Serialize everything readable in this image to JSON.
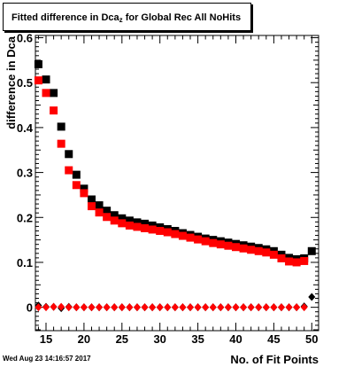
{
  "title": {
    "prefix": "Fitted difference in Dca",
    "subscript": "z",
    "suffix": " for Global Rec All NoHits"
  },
  "timestamp": "Wed Aug 23 14:16:57 2017",
  "chart_data": {
    "type": "scatter",
    "title": "Fitted difference in Dcaz for Global Rec All NoHits",
    "xlabel": "No. of Fit Points",
    "ylabel": "difference in Dca",
    "xlim": [
      13.6,
      50.9
    ],
    "ylim": [
      -0.052,
      0.605
    ],
    "x_ticks": [
      15,
      20,
      25,
      30,
      35,
      40,
      45,
      50
    ],
    "y_ticks": [
      0,
      0.1,
      0.2,
      0.3,
      0.4,
      0.5,
      0.6
    ],
    "grid": false,
    "legend": "none",
    "series": [
      {
        "color": "#000000",
        "marker": "square",
        "x": [
          14,
          15,
          16,
          17,
          18,
          19,
          20,
          21,
          22,
          23,
          24,
          25,
          26,
          27,
          28,
          29,
          30,
          31,
          32,
          33,
          34,
          35,
          36,
          37,
          38,
          39,
          40,
          41,
          42,
          43,
          44,
          45,
          46,
          47,
          48,
          49,
          50
        ],
        "y": [
          0.541,
          0.507,
          0.477,
          0.402,
          0.341,
          0.295,
          0.264,
          0.24,
          0.227,
          0.215,
          0.205,
          0.198,
          0.193,
          0.189,
          0.186,
          0.182,
          0.178,
          0.174,
          0.17,
          0.165,
          0.161,
          0.157,
          0.153,
          0.15,
          0.147,
          0.144,
          0.141,
          0.138,
          0.135,
          0.132,
          0.129,
          0.125,
          0.117,
          0.11,
          0.107,
          0.109,
          0.125
        ]
      },
      {
        "color": "#ff0000",
        "marker": "square",
        "x": [
          14,
          15,
          16,
          17,
          18,
          19,
          20,
          21,
          22,
          23,
          24,
          25,
          26,
          27,
          28,
          29,
          30,
          31,
          32,
          33,
          34,
          35,
          36,
          37,
          38,
          39,
          40,
          41,
          42,
          43,
          44,
          45,
          46,
          47,
          48,
          49
        ],
        "y": [
          0.505,
          0.477,
          0.438,
          0.364,
          0.305,
          0.272,
          0.254,
          0.225,
          0.211,
          0.201,
          0.193,
          0.187,
          0.182,
          0.179,
          0.176,
          0.173,
          0.17,
          0.167,
          0.163,
          0.159,
          0.155,
          0.151,
          0.147,
          0.143,
          0.14,
          0.137,
          0.134,
          0.131,
          0.128,
          0.125,
          0.122,
          0.117,
          0.109,
          0.102,
          0.1,
          0.103
        ]
      },
      {
        "color": "#000000",
        "marker": "diamond",
        "x": [
          14,
          15,
          16,
          17,
          18,
          19,
          20,
          21,
          22,
          23,
          24,
          25,
          26,
          27,
          28,
          29,
          30,
          31,
          32,
          33,
          34,
          35,
          36,
          37,
          38,
          39,
          40,
          41,
          42,
          43,
          44,
          45,
          46,
          47,
          48,
          49,
          50
        ],
        "y": [
          0.004,
          0.001,
          0.001,
          -0.002,
          0.001,
          0.0,
          0.0,
          0.0,
          0.0,
          0.0,
          0.0,
          0.0,
          0.0,
          0.0,
          0.0,
          0.0,
          0.0,
          0.0,
          0.0,
          0.0,
          0.0,
          0.0,
          0.0,
          0.0,
          0.0,
          0.0,
          0.0,
          0.0,
          0.0,
          0.0,
          0.0,
          0.0,
          0.0,
          0.0,
          0.0,
          0.002,
          0.023
        ]
      },
      {
        "color": "#ff0000",
        "marker": "diamond",
        "x": [
          14,
          15,
          16,
          17,
          18,
          19,
          20,
          21,
          22,
          23,
          24,
          25,
          26,
          27,
          28,
          29,
          30,
          31,
          32,
          33,
          34,
          35,
          36,
          37,
          38,
          39,
          40,
          41,
          42,
          43,
          44,
          45,
          46,
          47,
          48,
          49
        ],
        "y": [
          0.0,
          0.0,
          0.001,
          0.001,
          0.0,
          0.0,
          0.0,
          0.0,
          0.0,
          0.0,
          0.0,
          0.0,
          0.0,
          0.0,
          0.0,
          0.0,
          0.0,
          0.0,
          0.0,
          0.0,
          0.0,
          0.0,
          0.0,
          0.0,
          0.0,
          0.0,
          0.0,
          0.0,
          0.0,
          0.0,
          0.0,
          0.0,
          0.0,
          0.0,
          0.0,
          0.0
        ]
      }
    ]
  }
}
